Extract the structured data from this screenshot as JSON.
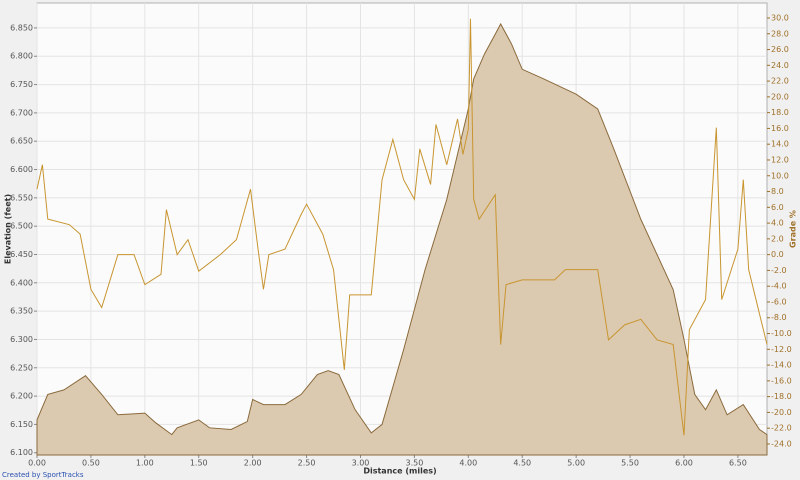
{
  "chart_data": {
    "type": "area-line",
    "xlabel": "Distance (miles)",
    "ylabel": "Elevation (feet)",
    "y2label": "Grade %",
    "credit": "Created by SportTracks",
    "grid": true,
    "xlim": [
      0,
      6.77
    ],
    "ylim": [
      6096,
      6894
    ],
    "y2lim": [
      -25.4,
      31.9
    ],
    "xticks": [
      {
        "value": 0,
        "label": "0.00"
      },
      {
        "value": 0.5,
        "label": "0.50"
      },
      {
        "value": 1,
        "label": "1.00"
      },
      {
        "value": 1.5,
        "label": "1.50"
      },
      {
        "value": 2,
        "label": "2.00"
      },
      {
        "value": 2.5,
        "label": "2.50"
      },
      {
        "value": 3,
        "label": "3.00"
      },
      {
        "value": 3.5,
        "label": "3.50"
      },
      {
        "value": 4,
        "label": "4.00"
      },
      {
        "value": 4.5,
        "label": "4.50"
      },
      {
        "value": 5,
        "label": "5.00"
      },
      {
        "value": 5.5,
        "label": "5.50"
      },
      {
        "value": 6,
        "label": "6.00"
      },
      {
        "value": 6.5,
        "label": "6.50"
      }
    ],
    "yticks": [
      {
        "value": 6100,
        "label": "6.100"
      },
      {
        "value": 6150,
        "label": "6.150"
      },
      {
        "value": 6200,
        "label": "6.200"
      },
      {
        "value": 6250,
        "label": "6.250"
      },
      {
        "value": 6300,
        "label": "6.300"
      },
      {
        "value": 6350,
        "label": "6.350"
      },
      {
        "value": 6400,
        "label": "6.400"
      },
      {
        "value": 6450,
        "label": "6.450"
      },
      {
        "value": 6500,
        "label": "6.500"
      },
      {
        "value": 6550,
        "label": "6.550"
      },
      {
        "value": 6600,
        "label": "6.600"
      },
      {
        "value": 6650,
        "label": "6.650"
      },
      {
        "value": 6700,
        "label": "6.700"
      },
      {
        "value": 6750,
        "label": "6.750"
      },
      {
        "value": 6800,
        "label": "6.800"
      },
      {
        "value": 6850,
        "label": "6.850"
      }
    ],
    "y2ticks": [
      {
        "value": 30,
        "label": "30.0"
      },
      {
        "value": 28,
        "label": "28.0"
      },
      {
        "value": 26,
        "label": "26.0"
      },
      {
        "value": 24,
        "label": "24.0"
      },
      {
        "value": 22,
        "label": "22.0"
      },
      {
        "value": 20,
        "label": "20.0"
      },
      {
        "value": 18,
        "label": "18.0"
      },
      {
        "value": 16,
        "label": "16.0"
      },
      {
        "value": 14,
        "label": "14.0"
      },
      {
        "value": 12,
        "label": "12.0"
      },
      {
        "value": 10,
        "label": "10.0"
      },
      {
        "value": 8,
        "label": "8.0"
      },
      {
        "value": 6,
        "label": "6.0"
      },
      {
        "value": 4,
        "label": "4.0"
      },
      {
        "value": 2,
        "label": "2.0"
      },
      {
        "value": 0,
        "label": "0.0"
      },
      {
        "value": -2,
        "label": "-2.0"
      },
      {
        "value": -4,
        "label": "-4.0"
      },
      {
        "value": -6,
        "label": "-6.0"
      },
      {
        "value": -8,
        "label": "-8.0"
      },
      {
        "value": -10,
        "label": "-10.0"
      },
      {
        "value": -12,
        "label": "-12.0"
      },
      {
        "value": -14,
        "label": "-14.0"
      },
      {
        "value": -16,
        "label": "-16.0"
      },
      {
        "value": -18,
        "label": "-18.0"
      },
      {
        "value": -20,
        "label": "-20.0"
      },
      {
        "value": -22,
        "label": "-22.0"
      },
      {
        "value": -24,
        "label": "-24.0"
      }
    ],
    "series": [
      {
        "type": "area",
        "color": "#dccab0",
        "stroke": "#8a6a3c",
        "x": [
          0,
          0.1,
          0.25,
          0.45,
          0.6,
          0.75,
          1.0,
          1.1,
          1.25,
          1.3,
          1.5,
          1.6,
          1.8,
          1.95,
          2.0,
          2.1,
          2.3,
          2.45,
          2.6,
          2.7,
          2.8,
          2.95,
          3.1,
          3.2,
          3.4,
          3.6,
          3.8,
          4.0,
          4.05,
          4.15,
          4.25,
          4.3,
          4.4,
          4.5,
          4.7,
          5.0,
          5.2,
          5.35,
          5.6,
          5.9,
          6.0,
          6.1,
          6.2,
          6.3,
          6.4,
          6.55,
          6.7,
          6.77
        ],
        "values": [
          6158,
          6203,
          6211,
          6236,
          6203,
          6167,
          6170,
          6153,
          6132,
          6144,
          6158,
          6144,
          6141,
          6155,
          6194,
          6185,
          6185,
          6203,
          6238,
          6245,
          6238,
          6176,
          6135,
          6150,
          6282,
          6424,
          6547,
          6707,
          6760,
          6804,
          6839,
          6857,
          6822,
          6777,
          6760,
          6733,
          6707,
          6636,
          6512,
          6388,
          6300,
          6203,
          6176,
          6211,
          6167,
          6185,
          6141,
          6132
        ]
      },
      {
        "type": "line",
        "axis": "y2",
        "color": "#c89530",
        "x": [
          0,
          0.05,
          0.1,
          0.3,
          0.4,
          0.5,
          0.6,
          0.75,
          0.9,
          1.0,
          1.15,
          1.2,
          1.3,
          1.4,
          1.5,
          1.7,
          1.85,
          1.98,
          2.05,
          2.1,
          2.15,
          2.3,
          2.45,
          2.5,
          2.65,
          2.75,
          2.85,
          2.9,
          3.1,
          3.2,
          3.3,
          3.4,
          3.5,
          3.55,
          3.65,
          3.7,
          3.8,
          3.9,
          3.95,
          4.0,
          4.02,
          4.05,
          4.1,
          4.25,
          4.3,
          4.35,
          4.5,
          4.8,
          4.9,
          5.2,
          5.3,
          5.45,
          5.6,
          5.75,
          5.9,
          6.0,
          6.05,
          6.2,
          6.3,
          6.35,
          6.5,
          6.55,
          6.6,
          6.77
        ],
        "values": [
          8.3,
          11.4,
          4.5,
          3.8,
          2.6,
          -4.4,
          -6.7,
          0,
          0,
          -3.8,
          -2.5,
          5.7,
          0,
          1.9,
          -2.1,
          0,
          1.9,
          8.3,
          0.7,
          -4.4,
          0,
          0.7,
          5.1,
          6.4,
          2.6,
          -1.9,
          -14.6,
          -5.1,
          -5.1,
          9.5,
          14.6,
          9.5,
          7.0,
          13.4,
          8.9,
          16.5,
          11.4,
          17.2,
          12.7,
          15.9,
          29.9,
          7.0,
          4.5,
          7.6,
          -11.4,
          -3.8,
          -3.2,
          -3.2,
          -1.9,
          -1.9,
          -10.8,
          -8.9,
          -8.2,
          -10.8,
          -11.4,
          -22.9,
          -9.5,
          -5.7,
          16.1,
          -5.7,
          0.7,
          9.5,
          -1.9,
          -11.4
        ]
      }
    ]
  }
}
